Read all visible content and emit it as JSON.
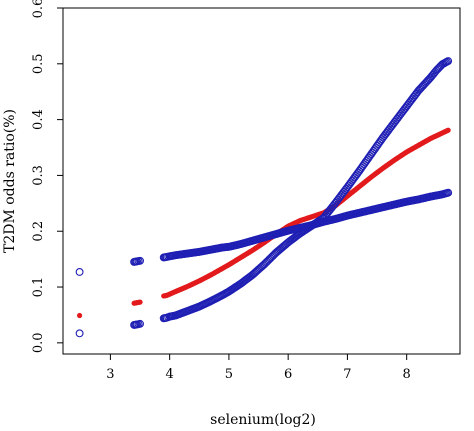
{
  "chart_data": {
    "type": "scatter",
    "xlabel": "selenium(log2)",
    "ylabel": "T2DM odds ratio(%)",
    "xlim": [
      2.2,
      8.9
    ],
    "ylim": [
      -0.02,
      0.6
    ],
    "xticks": [
      3,
      4,
      5,
      6,
      7,
      8
    ],
    "yticks": [
      0.0,
      0.1,
      0.2,
      0.3,
      0.4,
      0.5,
      0.6
    ],
    "xtick_labels": [
      "3",
      "4",
      "5",
      "6",
      "7",
      "8"
    ],
    "ytick_labels": [
      "0.0",
      "0.1",
      "0.2",
      "0.3",
      "0.4",
      "0.5",
      "0.6"
    ],
    "grid": false,
    "legend": "none",
    "series": [
      {
        "marker": "filled-dot",
        "color": "#e31a1c",
        "x": [
          2.48,
          3.4,
          3.45,
          3.5,
          3.9,
          3.95,
          4.1,
          4.3,
          4.5,
          4.7,
          4.9,
          5.0,
          5.2,
          5.4,
          5.6,
          5.8,
          6.0,
          6.2,
          6.4,
          6.6,
          6.8,
          7.0,
          7.2,
          7.4,
          7.6,
          7.8,
          8.0,
          8.2,
          8.4,
          8.6,
          8.7
        ],
        "y": [
          0.049,
          0.071,
          0.072,
          0.073,
          0.084,
          0.085,
          0.092,
          0.101,
          0.111,
          0.122,
          0.134,
          0.14,
          0.153,
          0.166,
          0.18,
          0.195,
          0.209,
          0.219,
          0.226,
          0.233,
          0.246,
          0.263,
          0.28,
          0.297,
          0.313,
          0.328,
          0.342,
          0.354,
          0.366,
          0.376,
          0.381
        ]
      },
      {
        "marker": "open-circle",
        "color": "#1f1fb4",
        "x": [
          2.48,
          3.4,
          3.45,
          3.5,
          3.9,
          3.95,
          4.0,
          4.1,
          4.3,
          4.5,
          4.7,
          4.9,
          5.0,
          5.2,
          5.4,
          5.6,
          5.8,
          6.0,
          6.2,
          6.4,
          6.6,
          6.8,
          7.0,
          7.2,
          7.4,
          7.6,
          7.8,
          8.0,
          8.2,
          8.4,
          8.5,
          8.6,
          8.7
        ],
        "y": [
          0.017,
          0.032,
          0.033,
          0.034,
          0.044,
          0.045,
          0.047,
          0.049,
          0.057,
          0.065,
          0.075,
          0.086,
          0.092,
          0.106,
          0.122,
          0.141,
          0.162,
          0.18,
          0.196,
          0.21,
          0.224,
          0.251,
          0.279,
          0.308,
          0.338,
          0.368,
          0.396,
          0.424,
          0.452,
          0.475,
          0.488,
          0.499,
          0.505
        ]
      },
      {
        "marker": "open-circle",
        "color": "#1f1fb4",
        "x": [
          2.48,
          3.4,
          3.45,
          3.5,
          3.9,
          3.95,
          4.0,
          4.1,
          4.3,
          4.5,
          4.7,
          4.9,
          5.0,
          5.2,
          5.4,
          5.6,
          5.8,
          6.0,
          6.2,
          6.4,
          6.6,
          6.8,
          7.0,
          7.2,
          7.4,
          7.6,
          7.8,
          8.0,
          8.2,
          8.4,
          8.6,
          8.7
        ],
        "y": [
          0.127,
          0.145,
          0.146,
          0.147,
          0.153,
          0.154,
          0.155,
          0.157,
          0.16,
          0.163,
          0.167,
          0.171,
          0.172,
          0.177,
          0.183,
          0.189,
          0.195,
          0.201,
          0.206,
          0.211,
          0.217,
          0.222,
          0.228,
          0.233,
          0.238,
          0.243,
          0.248,
          0.253,
          0.257,
          0.262,
          0.266,
          0.269
        ]
      }
    ]
  }
}
